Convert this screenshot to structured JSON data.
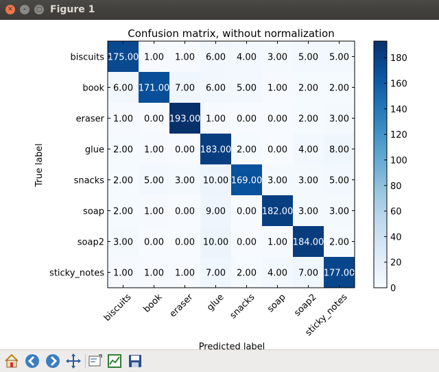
{
  "window": {
    "title": "Figure 1",
    "close_glyph": "✕",
    "minimize_glyph": "–",
    "maximize_glyph": "□"
  },
  "toolbar": {
    "items": [
      {
        "name": "home-button",
        "icon": "home-icon"
      },
      {
        "name": "back-button",
        "icon": "arrow-left-icon"
      },
      {
        "name": "forward-button",
        "icon": "arrow-right-icon"
      },
      {
        "name": "pan-button",
        "icon": "move-icon"
      },
      {
        "name": "zoom-button",
        "icon": "zoom-rect-icon"
      },
      {
        "name": "subplots-button",
        "icon": "configure-subplots-icon"
      },
      {
        "name": "save-button",
        "icon": "save-icon"
      }
    ]
  },
  "chart_data": {
    "type": "heatmap",
    "title": "Confusion matrix, without normalization",
    "xlabel": "Predicted label",
    "ylabel": "True label",
    "row_labels": [
      "biscuits",
      "book",
      "eraser",
      "glue",
      "snacks",
      "soap",
      "soap2",
      "sticky_notes"
    ],
    "col_labels": [
      "biscuits",
      "book",
      "eraser",
      "glue",
      "snacks",
      "soap",
      "soap2",
      "sticky_notes"
    ],
    "values": [
      [
        175,
        1,
        1,
        6,
        4,
        3,
        5,
        5
      ],
      [
        6,
        171,
        7,
        6,
        5,
        1,
        2,
        2
      ],
      [
        1,
        0,
        193,
        1,
        0,
        0,
        2,
        3
      ],
      [
        2,
        1,
        0,
        183,
        2,
        0,
        4,
        8
      ],
      [
        2,
        5,
        3,
        10,
        169,
        3,
        3,
        5
      ],
      [
        2,
        1,
        0,
        9,
        0,
        182,
        3,
        3
      ],
      [
        3,
        0,
        0,
        10,
        0,
        1,
        184,
        2
      ],
      [
        1,
        1,
        1,
        7,
        2,
        4,
        7,
        177
      ]
    ],
    "value_format_decimals": 2,
    "colormap": "Blues",
    "colormap_low": "#f7fbff",
    "colormap_high": "#08306b",
    "text_color_dark_cell": "#ffffff",
    "text_color_light_cell": "#000000",
    "colorbar": {
      "min": 0,
      "max": 193,
      "ticks": [
        0,
        20,
        40,
        60,
        80,
        100,
        120,
        140,
        160,
        180
      ]
    }
  }
}
